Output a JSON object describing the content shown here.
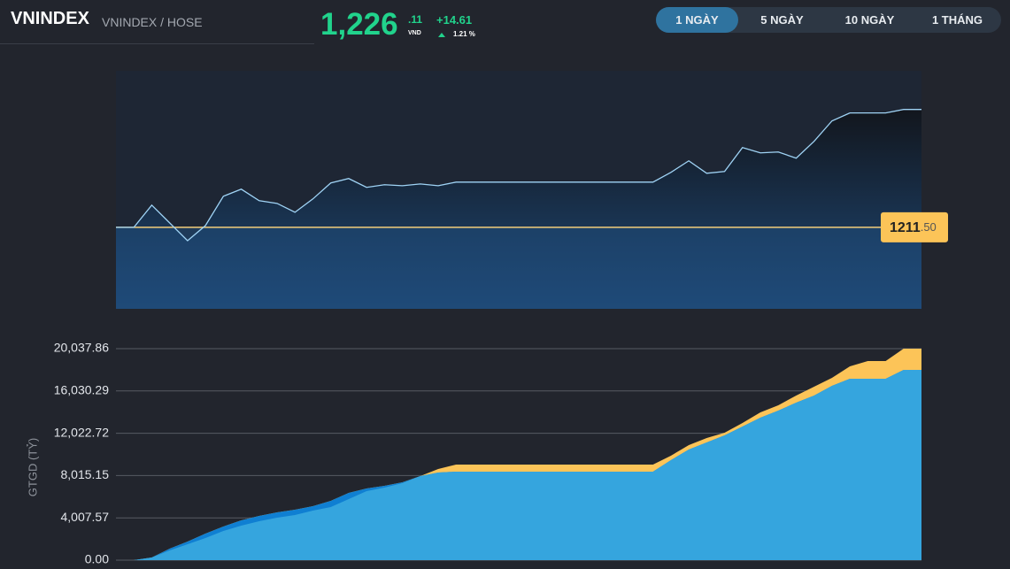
{
  "header": {
    "symbol": "VNINDEX",
    "exchange": "VNINDEX / HOSE",
    "price": "1,226",
    "price_decimal": ".11",
    "currency": "VND",
    "change": "+14.61",
    "change_percent": "1.21 %"
  },
  "tabs": [
    {
      "label": "1 NGÀY",
      "active": true
    },
    {
      "label": "5 NGÀY",
      "active": false
    },
    {
      "label": "10 NGÀY",
      "active": false
    },
    {
      "label": "1 THÁNG",
      "active": false
    }
  ],
  "chart_data": [
    {
      "type": "line",
      "color": "#9fd3f5",
      "values": [
        1211.5,
        1211.5,
        1214.25,
        1212.05,
        1209.85,
        1211.72,
        1215.35,
        1216.23,
        1214.8,
        1214.47,
        1213.37,
        1215.02,
        1217.0,
        1217.55,
        1216.45,
        1216.78,
        1216.66,
        1216.88,
        1216.66,
        1217.1,
        1217.1,
        1217.1,
        1217.1,
        1217.1,
        1217.1,
        1217.1,
        1217.1,
        1217.1,
        1217.1,
        1217.1,
        1217.1,
        1218.31,
        1219.74,
        1218.2,
        1218.42,
        1221.39,
        1220.73,
        1220.84,
        1220.07,
        1222.16,
        1224.69,
        1225.68,
        1225.68,
        1225.68,
        1226.11,
        1226.11
      ],
      "ylim": [
        1201.4,
        1230.9
      ],
      "reference": {
        "value": 1211.5,
        "label": "1211",
        "label_decimal": ".50",
        "color": "#f4cd78"
      }
    },
    {
      "type": "area",
      "y_label": "GTGD (TỶ)",
      "ylim": [
        0,
        20037.86
      ],
      "yticks": [
        {
          "value": 0,
          "label": "0.00"
        },
        {
          "value": 4007.57,
          "label": "4,007.57"
        },
        {
          "value": 8015.15,
          "label": "8,015.15"
        },
        {
          "value": 12022.72,
          "label": "12,022.72"
        },
        {
          "value": 16030.29,
          "label": "16,030.29"
        },
        {
          "value": 20037.86,
          "label": "20,037.86"
        }
      ],
      "grid": true,
      "series": [
        {
          "color": "#fcc458",
          "values": [
            0,
            0,
            252,
            1090,
            1761,
            2515,
            3186,
            3773,
            4192,
            4527,
            4779,
            5114,
            5617,
            6372,
            6791,
            7043,
            7378,
            7965,
            8636,
            9055,
            9055,
            9055,
            9055,
            9055,
            9055,
            9055,
            9055,
            9055,
            9055,
            9055,
            9055,
            9894,
            10899,
            11570,
            12073,
            12995,
            14001,
            14672,
            15594,
            16433,
            17271,
            18360,
            18864,
            18864,
            20037.86,
            20037.86
          ]
        },
        {
          "color": "#0f7fd2",
          "values": [
            0,
            0,
            252,
            1090,
            1761,
            2515,
            3186,
            3773,
            4192,
            4527,
            4779,
            5114,
            5617,
            6372,
            6791,
            7043,
            7378,
            7965,
            8300,
            8384,
            8384,
            8384,
            8384,
            8384,
            8384,
            8384,
            8384,
            8384,
            8384,
            8384,
            8384,
            9474,
            10480,
            11151,
            11821,
            12660,
            13498,
            14169,
            14924,
            15594,
            16516,
            17187,
            17187,
            17187,
            18026,
            18026
          ]
        },
        {
          "color": "#35a5de",
          "values": [
            0,
            0,
            252,
            922,
            1509,
            2096,
            2767,
            3270,
            3689,
            4024,
            4276,
            4695,
            5030,
            5785,
            6540,
            6875,
            7294,
            7965,
            8300,
            8384,
            8384,
            8384,
            8384,
            8384,
            8384,
            8384,
            8384,
            8384,
            8384,
            8384,
            8384,
            9474,
            10480,
            11151,
            11821,
            12660,
            13498,
            14169,
            14924,
            15594,
            16516,
            17187,
            17187,
            17187,
            18026,
            18026
          ]
        }
      ]
    }
  ]
}
